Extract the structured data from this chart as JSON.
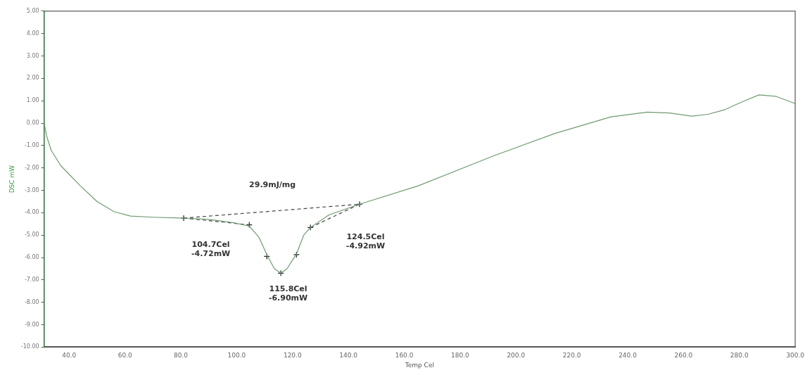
{
  "chart_data": {
    "type": "line",
    "xlabel": "Temp Cel",
    "ylabel": "DSC mW",
    "xlim": [
      31,
      300
    ],
    "ylim": [
      -10,
      5
    ],
    "xticks": [
      {
        "value": 40,
        "label": "40.0"
      },
      {
        "value": 60,
        "label": "60.0"
      },
      {
        "value": 80,
        "label": "80.0"
      },
      {
        "value": 100,
        "label": "100.0"
      },
      {
        "value": 120,
        "label": "120.0"
      },
      {
        "value": 140,
        "label": "140.0"
      },
      {
        "value": 160,
        "label": "160.0"
      },
      {
        "value": 180,
        "label": "180.0"
      },
      {
        "value": 200,
        "label": "200.0"
      },
      {
        "value": 220,
        "label": "220.0"
      },
      {
        "value": 240,
        "label": "240.0"
      },
      {
        "value": 260,
        "label": "260.0"
      },
      {
        "value": 280,
        "label": "280.0"
      },
      {
        "value": 300,
        "label": "300.0"
      }
    ],
    "yticks": [
      {
        "value": 5,
        "label": "5.00"
      },
      {
        "value": 4,
        "label": "4.00"
      },
      {
        "value": 3,
        "label": "3.00"
      },
      {
        "value": 2,
        "label": "2.00"
      },
      {
        "value": 1,
        "label": "1.00"
      },
      {
        "value": 0,
        "label": "0.00"
      },
      {
        "value": -1,
        "label": "-1.00"
      },
      {
        "value": -2,
        "label": "-2.00"
      },
      {
        "value": -3,
        "label": "-3.00"
      },
      {
        "value": -4,
        "label": "-4.00"
      },
      {
        "value": -5,
        "label": "-5.00"
      },
      {
        "value": -6,
        "label": "-6.00"
      },
      {
        "value": -7,
        "label": "-7.00"
      },
      {
        "value": -8,
        "label": "-8.00"
      },
      {
        "value": -9,
        "label": "-9.00"
      },
      {
        "value": -10,
        "label": "-10.00"
      }
    ],
    "grid": false,
    "legend": false,
    "series": [
      {
        "color": "#6f9a6f",
        "x": [
          31,
          32,
          33.5,
          37,
          44,
          50,
          56,
          62,
          70,
          81,
          90,
          99,
          104.5,
          108,
          111,
          113.5,
          115.8,
          118,
          121.4,
          124,
          126.4,
          133,
          144,
          165,
          192,
          214,
          234,
          247,
          255,
          263,
          269,
          275,
          281,
          287,
          293,
          300
        ],
        "values": [
          0,
          -0.6,
          -1.2,
          -1.9,
          -2.8,
          -3.5,
          -3.95,
          -4.15,
          -4.2,
          -4.24,
          -4.3,
          -4.45,
          -4.6,
          -5.1,
          -5.93,
          -6.5,
          -6.7,
          -6.5,
          -5.84,
          -5,
          -4.66,
          -4.1,
          -3.62,
          -2.8,
          -1.46,
          -0.46,
          0.28,
          0.49,
          0.45,
          0.31,
          0.4,
          0.61,
          0.95,
          1.26,
          1.2,
          0.87
        ]
      },
      {
        "type": "line",
        "line_style": "dashed",
        "color": "#444444",
        "x": [
          81,
          144
        ],
        "values": [
          -4.24,
          -3.62
        ]
      },
      {
        "type": "line",
        "line_style": "dashed",
        "color": "#444444",
        "x": [
          81,
          104.5
        ],
        "values": [
          -4.24,
          -4.54
        ]
      },
      {
        "type": "line",
        "line_style": "dashed",
        "color": "#444444",
        "x": [
          126.4,
          144
        ],
        "values": [
          -4.66,
          -3.62
        ]
      },
      {
        "type": "scatter",
        "marker": "cross",
        "color": "#222222",
        "x": [
          81,
          104.5,
          110.8,
          115.8,
          121.4,
          126.4,
          144
        ],
        "values": [
          -4.24,
          -4.54,
          -5.95,
          -6.7,
          -5.87,
          -4.66,
          -3.62
        ]
      }
    ],
    "annotations": [
      "29.9mJ/mg",
      "104.7Cel\n-4.72mW",
      "115.8Cel\n-6.90mW",
      "124.5Cel\n-4.92mW"
    ]
  }
}
